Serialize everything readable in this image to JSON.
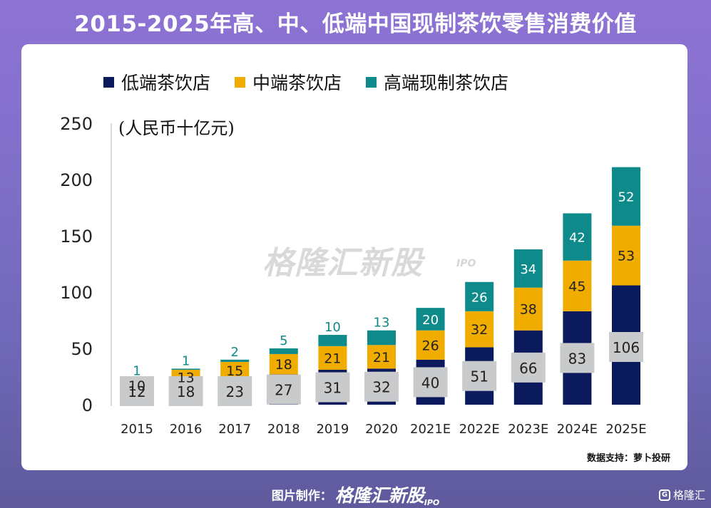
{
  "title": "2015-2025年高、中、低端中国现制茶饮零售消费价值",
  "unit_label": "(人民币十亿元)",
  "source": "数据支持：萝卜投研",
  "watermark": "格隆汇新股",
  "watermark_sub": "IPO",
  "footer": {
    "label": "图片制作：",
    "brand": "格隆汇新股",
    "brand_sub": "IPO"
  },
  "corner_logo": "格隆汇",
  "colors": {
    "low": "#0b1a5c",
    "mid": "#f0ad00",
    "high": "#0e8a8a",
    "label_box": "#c8cacb"
  },
  "chart_data": {
    "type": "bar",
    "stacked": true,
    "categories": [
      "2015",
      "2016",
      "2017",
      "2018",
      "2019",
      "2020",
      "2021E",
      "2022E",
      "2023E",
      "2024E",
      "2025E"
    ],
    "series": [
      {
        "name": "低端茶饮店",
        "values": [
          12,
          18,
          23,
          27,
          31,
          32,
          40,
          51,
          66,
          83,
          106
        ]
      },
      {
        "name": "中端茶饮店",
        "values": [
          10,
          13,
          15,
          18,
          21,
          21,
          26,
          32,
          38,
          45,
          53
        ]
      },
      {
        "name": "高端现制茶饮店",
        "values": [
          1,
          1,
          2,
          5,
          10,
          13,
          20,
          26,
          34,
          42,
          52
        ]
      }
    ],
    "yticks": [
      0,
      50,
      100,
      150,
      200,
      250
    ],
    "ylim": [
      0,
      250
    ],
    "legend_position": "top"
  }
}
